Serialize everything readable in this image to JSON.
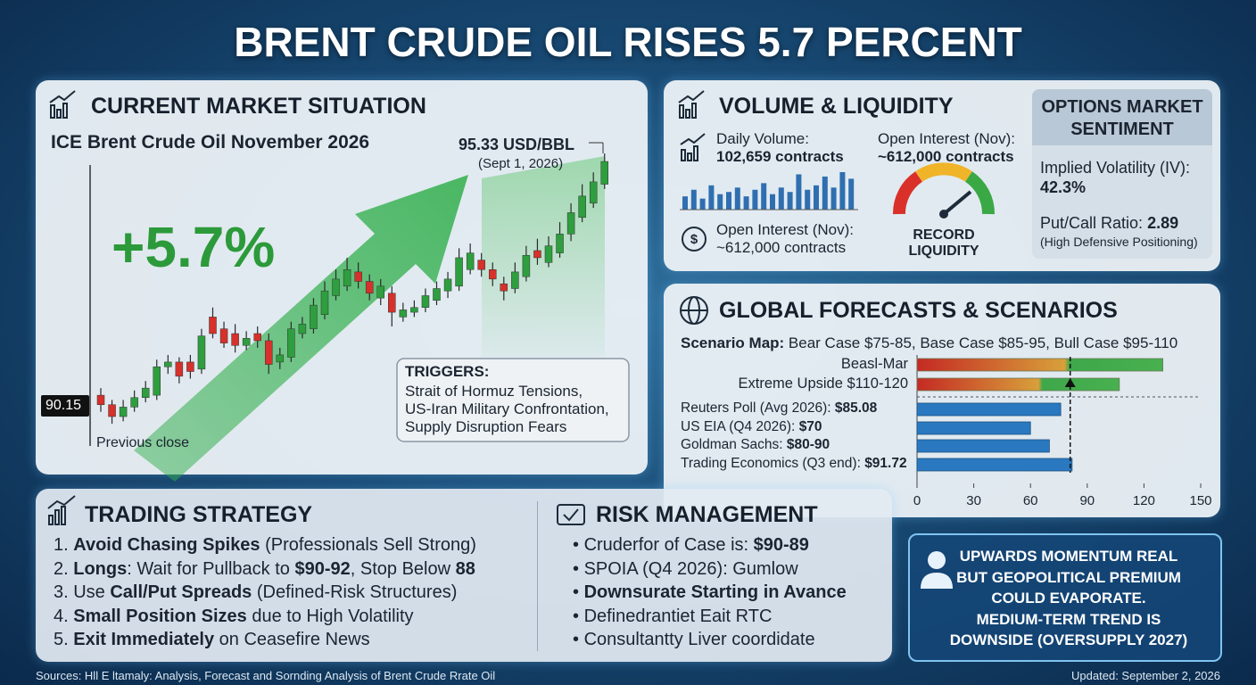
{
  "title": "BRENT CRUDE OIL RISES 5.7 PERCENT",
  "market": {
    "heading": "CURRENT MARKET SITUATION",
    "instrument": "ICE Brent Crude Oil November 2026",
    "change": "+5.7%",
    "last_price": "95.33 USD/BBL",
    "last_date": "(Sept 1, 2026)",
    "prev_close": "90.15",
    "prev_close_label": "Previous close",
    "triggers": {
      "heading": "TRIGGERS:",
      "items": [
        "Strait of Hormuz Tensions,",
        "US-Iran Military Confrontation,",
        "Supply Disruption Fears"
      ]
    }
  },
  "volume": {
    "heading": "VOLUME & LIQUIDITY",
    "daily_label": "Daily Volume:",
    "daily_value": "102,659 contracts",
    "oi_label": "Open Interest (Nov):",
    "oi_value": "~612,000 contracts",
    "oi2_label": "Open Interest (Nov):",
    "oi2_value": "~612,000 contracts",
    "gauge_label": "RECORD LIQUIDITY"
  },
  "options": {
    "heading": "OPTIONS MARKET SENTIMENT",
    "iv_label": "Implied Volatility (IV):",
    "iv_value": "42.3%",
    "pc_label": "Put/Call Ratio:",
    "pc_value": "2.89",
    "pc_note": "(High Defensive Positioning)"
  },
  "forecasts": {
    "heading": "GLOBAL FORECASTS & SCENARIOS",
    "scenario_map": [
      {
        "t": "Scenario Map:",
        "b": true
      },
      {
        "t": " Bear Case $75-85, Base Case $85-95, Bull Case $95-110"
      }
    ]
  },
  "strategy": {
    "heading": "TRADING STRATEGY",
    "items": [
      [
        {
          "t": "1. "
        },
        {
          "t": "Avoid Chasing Spikes",
          "b": true
        },
        {
          "t": " (Professionals Sell Strong)"
        }
      ],
      [
        {
          "t": "2. "
        },
        {
          "t": "Longs",
          "b": true
        },
        {
          "t": ": Wait for Pullback to "
        },
        {
          "t": "$90-92",
          "b": true
        },
        {
          "t": ", Stop Below "
        },
        {
          "t": "88",
          "b": true
        }
      ],
      [
        {
          "t": "3. Use "
        },
        {
          "t": "Call/Put Spreads",
          "b": true
        },
        {
          "t": " (Defined-Risk Structures)"
        }
      ],
      [
        {
          "t": "4. "
        },
        {
          "t": "Small Position Sizes",
          "b": true
        },
        {
          "t": " due to High Volatility"
        }
      ],
      [
        {
          "t": "5. "
        },
        {
          "t": "Exit Immediately",
          "b": true
        },
        {
          "t": " on Ceasefire News"
        }
      ]
    ]
  },
  "risk": {
    "heading": "RISK MANAGEMENT",
    "items": [
      [
        {
          "t": "Cruderfor of Case is: "
        },
        {
          "t": "$90-89",
          "b": true
        }
      ],
      [
        {
          "t": "SPOIA (Q4 2026): Gumlow"
        }
      ],
      [
        {
          "t": "Downsurate Starting in Avance",
          "b": true
        }
      ],
      [
        {
          "t": "Definedrantiet Eait RTC"
        }
      ],
      [
        {
          "t": "Consultantty Liver coordidate"
        }
      ]
    ]
  },
  "outlook": {
    "lines": [
      "UPWARDS MOMENTUM REAL",
      "BUT GEOPOLITICAL PREMIUM",
      "COULD EVAPORATE.",
      "MEDIUM-TERM TREND IS",
      "DOWNSIDE (OVERSUPPLY 2027)"
    ]
  },
  "footer": {
    "sources": "Sources: Hll E ltamaly: Analysis, Forecast and Sornding Analysis of Brent Crude Rrate Oil",
    "updated": "Updated: September 2, 2026"
  },
  "chart_data": [
    {
      "type": "candlestick",
      "up_color": "#2e9e3e",
      "down_color": "#d6312b",
      "open": [
        90.4,
        90.2,
        89.95,
        90.15,
        90.35,
        90.4,
        91.0,
        91.1,
        91.1,
        90.95,
        92.05,
        91.8,
        91.7,
        91.45,
        91.7,
        91.55,
        91.1,
        91.2,
        91.7,
        91.8,
        92.1,
        92.5,
        92.7,
        93.0,
        92.8,
        92.45,
        92.55,
        92.05,
        92.15,
        92.25,
        92.4,
        92.6,
        92.7,
        93.05,
        93.25,
        93.05,
        92.75,
        92.65,
        92.9,
        93.45,
        93.2,
        93.4,
        93.8,
        94.15,
        94.45,
        94.85
      ],
      "high": [
        90.55,
        90.3,
        90.3,
        90.5,
        90.7,
        91.15,
        91.25,
        91.2,
        91.25,
        91.8,
        92.25,
        91.95,
        91.9,
        91.75,
        91.85,
        91.7,
        91.4,
        91.95,
        92.05,
        92.45,
        92.8,
        93.05,
        93.3,
        93.2,
        92.95,
        92.85,
        92.7,
        92.35,
        92.4,
        92.65,
        92.8,
        93.0,
        93.5,
        93.6,
        93.4,
        93.2,
        92.9,
        93.2,
        93.55,
        93.7,
        93.75,
        94.05,
        94.45,
        94.85,
        95.1,
        95.5
      ],
      "low": [
        90.05,
        89.8,
        89.85,
        90.05,
        90.25,
        90.3,
        90.85,
        90.65,
        90.75,
        90.85,
        91.6,
        91.4,
        91.3,
        91.35,
        91.4,
        90.85,
        90.95,
        91.1,
        91.6,
        91.7,
        92.0,
        92.4,
        92.6,
        92.65,
        92.4,
        92.3,
        91.85,
        91.95,
        92.05,
        92.15,
        92.3,
        92.45,
        92.6,
        92.95,
        92.9,
        92.7,
        92.4,
        92.55,
        92.8,
        93.15,
        93.1,
        93.3,
        93.65,
        94.05,
        94.35,
        94.75
      ],
      "close": [
        90.2,
        89.95,
        90.15,
        90.35,
        90.55,
        91.0,
        91.1,
        90.8,
        90.9,
        91.65,
        91.7,
        91.5,
        91.45,
        91.6,
        91.55,
        91.05,
        91.25,
        91.8,
        91.9,
        92.3,
        92.6,
        92.85,
        93.05,
        92.8,
        92.55,
        92.7,
        92.15,
        92.2,
        92.25,
        92.5,
        92.65,
        92.85,
        93.3,
        93.4,
        93.05,
        92.85,
        92.6,
        93.0,
        93.35,
        93.3,
        93.55,
        93.8,
        94.25,
        94.6,
        94.9,
        95.33
      ]
    },
    {
      "type": "bar",
      "color": "#2f6fb0",
      "values": [
        30,
        45,
        25,
        55,
        35,
        40,
        50,
        30,
        45,
        60,
        35,
        50,
        40,
        80,
        45,
        55,
        75,
        50,
        85,
        70
      ]
    },
    {
      "type": "hbar",
      "color": "#2a78c0",
      "categories": [
        [
          {
            "t": "Beasl-Mar"
          }
        ],
        [
          {
            "t": "Extreme Upside $110-120"
          }
        ],
        [
          {
            "t": "Reuters Poll (Avg 2026): "
          },
          {
            "t": "$85.08",
            "b": true
          }
        ],
        [
          {
            "t": "US EIA (Q4 2026): "
          },
          {
            "t": "$70",
            "b": true
          }
        ],
        [
          {
            "t": "Goldman Sachs: "
          },
          {
            "t": "$80-90",
            "b": true
          }
        ],
        [
          {
            "t": "Trading Economics (Q3 end): "
          },
          {
            "t": "$91.72",
            "b": true
          }
        ]
      ],
      "row_kinds": [
        "scenario",
        "scenario",
        "forecast",
        "forecast",
        "forecast",
        "forecast"
      ],
      "values": [
        130,
        107,
        76,
        60,
        70,
        82
      ],
      "marker": 81,
      "xlim": [
        0,
        150
      ],
      "xticks": [
        0,
        30,
        60,
        90,
        120,
        150
      ]
    }
  ]
}
